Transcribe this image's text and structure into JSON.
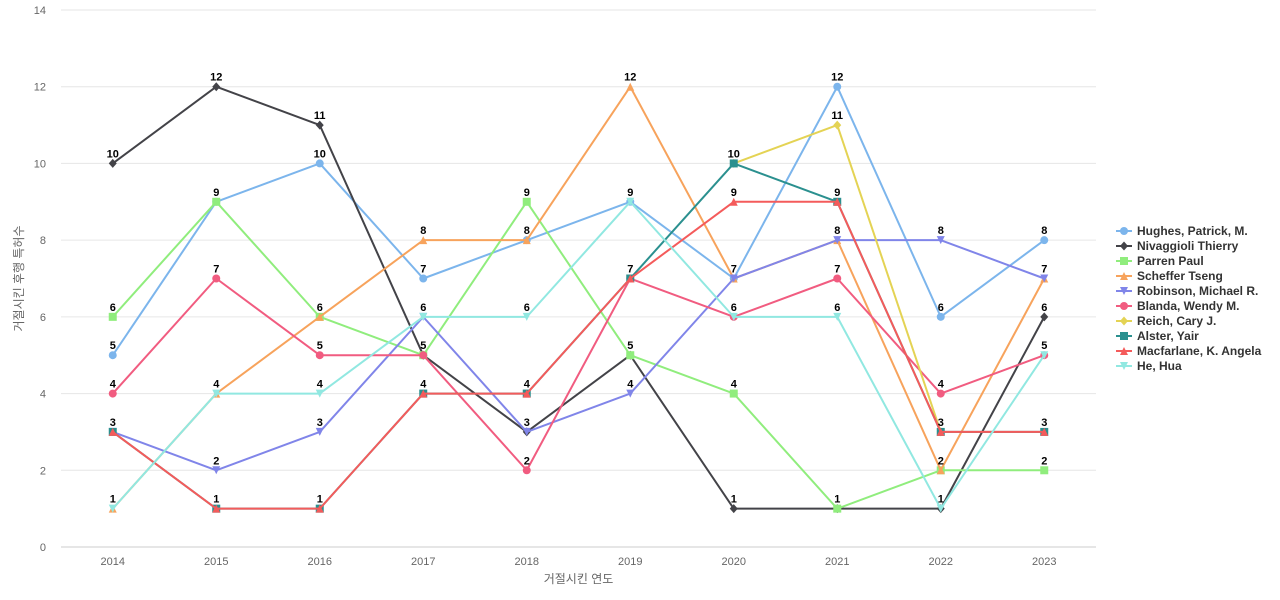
{
  "chart_data": {
    "type": "line",
    "xlabel": "거절시킨 연도",
    "ylabel": "거절시킨 후행 특허수",
    "ylim": [
      0,
      14
    ],
    "yticks": [
      0,
      2,
      4,
      6,
      8,
      10,
      12,
      14
    ],
    "grid": true,
    "legend_position": "right",
    "categories": [
      "2014",
      "2015",
      "2016",
      "2017",
      "2018",
      "2019",
      "2020",
      "2021",
      "2022",
      "2023"
    ],
    "series": [
      {
        "name": "Hughes, Patrick, M.",
        "color": "#7cb5ec",
        "marker": "circle",
        "values": [
          5,
          9,
          10,
          7,
          8,
          9,
          7,
          12,
          6,
          8
        ]
      },
      {
        "name": "Nivaggioli Thierry",
        "color": "#434348",
        "marker": "diamond",
        "values": [
          10,
          12,
          11,
          5,
          3,
          5,
          1,
          1,
          1,
          6
        ]
      },
      {
        "name": "Parren Paul",
        "color": "#90ed7d",
        "marker": "square",
        "values": [
          6,
          9,
          6,
          5,
          9,
          5,
          4,
          1,
          2,
          2
        ]
      },
      {
        "name": "Scheffer Tseng",
        "color": "#f7a35c",
        "marker": "triangle",
        "values": [
          1,
          4,
          6,
          8,
          8,
          12,
          7,
          8,
          2,
          7
        ]
      },
      {
        "name": "Robinson, Michael R.",
        "color": "#8085e9",
        "marker": "triangle-down",
        "values": [
          3,
          2,
          3,
          6,
          3,
          4,
          7,
          8,
          8,
          7
        ]
      },
      {
        "name": "Blanda, Wendy M.",
        "color": "#f15c80",
        "marker": "circle",
        "values": [
          4,
          7,
          5,
          5,
          2,
          7,
          6,
          7,
          4,
          5
        ]
      },
      {
        "name": "Reich, Cary J.",
        "color": "#e4d354",
        "marker": "diamond",
        "values": [
          null,
          null,
          null,
          null,
          null,
          null,
          10,
          11,
          3,
          null
        ]
      },
      {
        "name": "Alster, Yair",
        "color": "#2b908f",
        "marker": "square",
        "values": [
          3,
          1,
          1,
          4,
          4,
          7,
          10,
          9,
          3,
          3
        ]
      },
      {
        "name": "Macfarlane, K. Angela",
        "color": "#f45b5b",
        "marker": "triangle",
        "values": [
          3,
          1,
          1,
          4,
          4,
          7,
          9,
          9,
          3,
          3
        ]
      },
      {
        "name": "He, Hua",
        "color": "#91e8e1",
        "marker": "triangle-down",
        "values": [
          1,
          4,
          4,
          6,
          6,
          9,
          6,
          6,
          1,
          5
        ]
      }
    ],
    "data_labels": [
      {
        "x": "2014",
        "y": 10,
        "text": "10"
      },
      {
        "x": "2014",
        "y": 6,
        "text": "6"
      },
      {
        "x": "2014",
        "y": 5,
        "text": "5"
      },
      {
        "x": "2014",
        "y": 4,
        "text": "4"
      },
      {
        "x": "2014",
        "y": 3,
        "text": "3"
      },
      {
        "x": "2014",
        "y": 1,
        "text": "1"
      },
      {
        "x": "2015",
        "y": 12,
        "text": "12"
      },
      {
        "x": "2015",
        "y": 9,
        "text": "9"
      },
      {
        "x": "2015",
        "y": 7,
        "text": "7"
      },
      {
        "x": "2015",
        "y": 4,
        "text": "4"
      },
      {
        "x": "2015",
        "y": 2,
        "text": "2"
      },
      {
        "x": "2015",
        "y": 1,
        "text": "1"
      },
      {
        "x": "2016",
        "y": 11,
        "text": "11"
      },
      {
        "x": "2016",
        "y": 10,
        "text": "10"
      },
      {
        "x": "2016",
        "y": 6,
        "text": "6"
      },
      {
        "x": "2016",
        "y": 5,
        "text": "5"
      },
      {
        "x": "2016",
        "y": 4,
        "text": "4"
      },
      {
        "x": "2016",
        "y": 3,
        "text": "3"
      },
      {
        "x": "2016",
        "y": 1,
        "text": "1"
      },
      {
        "x": "2017",
        "y": 8,
        "text": "8"
      },
      {
        "x": "2017",
        "y": 7,
        "text": "7"
      },
      {
        "x": "2017",
        "y": 6,
        "text": "6"
      },
      {
        "x": "2017",
        "y": 5,
        "text": "5"
      },
      {
        "x": "2017",
        "y": 4,
        "text": "4"
      },
      {
        "x": "2018",
        "y": 9,
        "text": "9"
      },
      {
        "x": "2018",
        "y": 8,
        "text": "8"
      },
      {
        "x": "2018",
        "y": 6,
        "text": "6"
      },
      {
        "x": "2018",
        "y": 4,
        "text": "4"
      },
      {
        "x": "2018",
        "y": 3,
        "text": "3"
      },
      {
        "x": "2018",
        "y": 2,
        "text": "2"
      },
      {
        "x": "2019",
        "y": 12,
        "text": "12"
      },
      {
        "x": "2019",
        "y": 9,
        "text": "9"
      },
      {
        "x": "2019",
        "y": 7,
        "text": "7"
      },
      {
        "x": "2019",
        "y": 5,
        "text": "5"
      },
      {
        "x": "2019",
        "y": 4,
        "text": "4"
      },
      {
        "x": "2020",
        "y": 10,
        "text": "10"
      },
      {
        "x": "2020",
        "y": 9,
        "text": "9"
      },
      {
        "x": "2020",
        "y": 7,
        "text": "7"
      },
      {
        "x": "2020",
        "y": 6,
        "text": "6"
      },
      {
        "x": "2020",
        "y": 4,
        "text": "4"
      },
      {
        "x": "2020",
        "y": 1,
        "text": "1"
      },
      {
        "x": "2021",
        "y": 12,
        "text": "12"
      },
      {
        "x": "2021",
        "y": 11,
        "text": "11"
      },
      {
        "x": "2021",
        "y": 9,
        "text": "9"
      },
      {
        "x": "2021",
        "y": 8,
        "text": "8"
      },
      {
        "x": "2021",
        "y": 7,
        "text": "7"
      },
      {
        "x": "2021",
        "y": 6,
        "text": "6"
      },
      {
        "x": "2021",
        "y": 1,
        "text": "1"
      },
      {
        "x": "2022",
        "y": 8,
        "text": "8"
      },
      {
        "x": "2022",
        "y": 6,
        "text": "6"
      },
      {
        "x": "2022",
        "y": 4,
        "text": "4"
      },
      {
        "x": "2022",
        "y": 3,
        "text": "3"
      },
      {
        "x": "2022",
        "y": 2,
        "text": "2"
      },
      {
        "x": "2022",
        "y": 1,
        "text": "1"
      },
      {
        "x": "2023",
        "y": 8,
        "text": "8"
      },
      {
        "x": "2023",
        "y": 7,
        "text": "7"
      },
      {
        "x": "2023",
        "y": 6,
        "text": "6"
      },
      {
        "x": "2023",
        "y": 5,
        "text": "5"
      },
      {
        "x": "2023",
        "y": 3,
        "text": "3"
      },
      {
        "x": "2023",
        "y": 2,
        "text": "2"
      }
    ]
  }
}
